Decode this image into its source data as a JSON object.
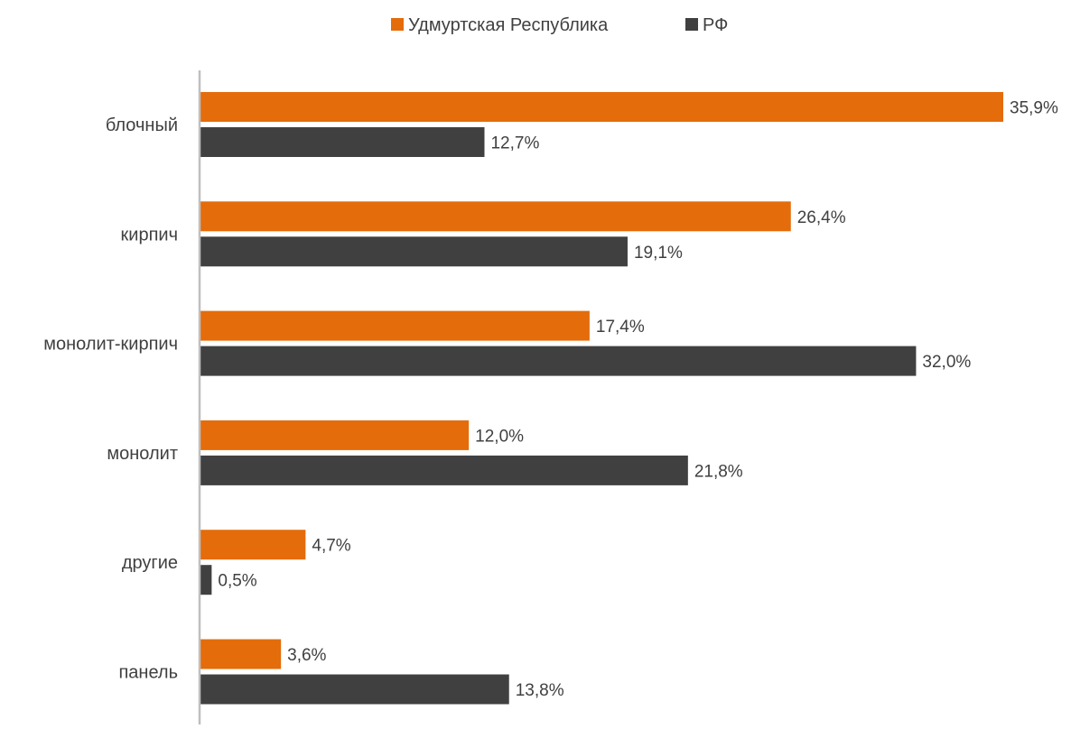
{
  "chart_data": {
    "type": "bar",
    "orientation": "horizontal",
    "categories": [
      "блочный",
      "кирпич",
      "монолит-кирпич",
      "монолит",
      "другие",
      "панель"
    ],
    "series": [
      {
        "name": "Удмуртская Республика",
        "color": "#E46C0A",
        "values": [
          35.9,
          26.4,
          17.4,
          12.0,
          4.7,
          3.6
        ],
        "labels": [
          "35,9%",
          "26,4%",
          "17,4%",
          "12,0%",
          "4,7%",
          "3,6%"
        ]
      },
      {
        "name": "РФ",
        "color": "#404040",
        "values": [
          12.7,
          19.1,
          32.0,
          21.8,
          0.5,
          13.8
        ],
        "labels": [
          "12,7%",
          "19,1%",
          "32,0%",
          "21,8%",
          "0,5%",
          "13,8%"
        ]
      }
    ],
    "xlim": [
      0,
      35.9
    ],
    "legend_position": "top-center",
    "grid": false,
    "axis_color": "#BFBFBF",
    "text_color": "#404040"
  }
}
